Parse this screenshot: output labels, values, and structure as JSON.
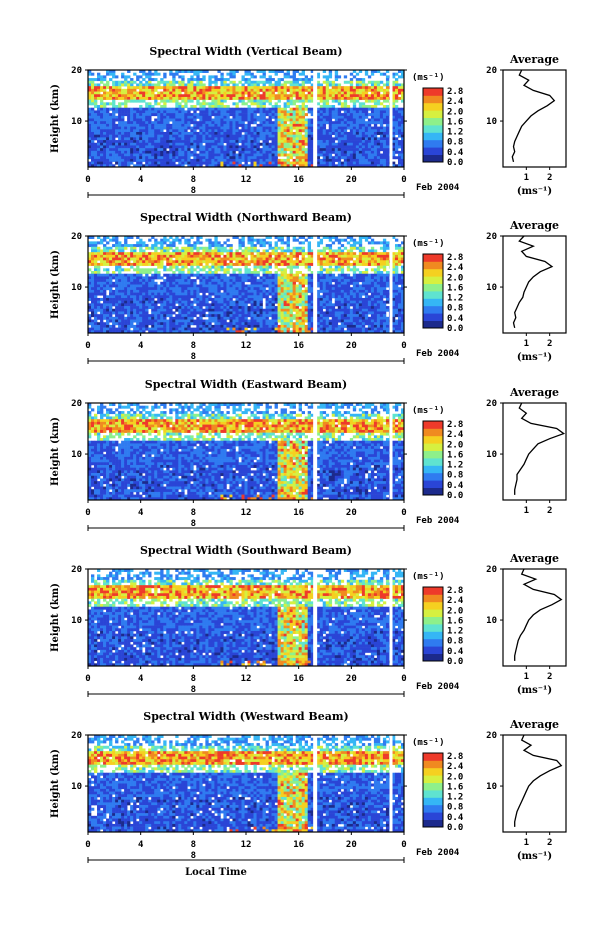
{
  "chart_data": [
    {
      "type": "heatmap",
      "title": "Spectral Width (Vertical Beam)",
      "ylabel": "Height (km)",
      "yticks": [
        "20",
        "10"
      ],
      "xticks": [
        "0",
        "4",
        "8",
        "12",
        "16",
        "20",
        "0"
      ],
      "date_marker": "8",
      "date_label": "Feb 2004",
      "colorbar_unit": "(ms⁻¹)",
      "colorbar_ticks": [
        "2.8",
        "2.4",
        "2.0",
        "1.6",
        "1.2",
        "0.8",
        "0.4",
        "0.0"
      ],
      "profile": {
        "title": "Average",
        "xlabel": "(ms⁻¹)",
        "xticks": [
          "1",
          "2"
        ],
        "yticks": [
          "20",
          "10"
        ],
        "points": [
          [
            0.45,
            2
          ],
          [
            0.4,
            3
          ],
          [
            0.5,
            4
          ],
          [
            0.45,
            5
          ],
          [
            0.5,
            6
          ],
          [
            0.6,
            7
          ],
          [
            0.7,
            8
          ],
          [
            0.8,
            9
          ],
          [
            1.0,
            10
          ],
          [
            1.2,
            11
          ],
          [
            1.5,
            12
          ],
          [
            1.9,
            13
          ],
          [
            2.2,
            14
          ],
          [
            2.0,
            15
          ],
          [
            1.3,
            16
          ],
          [
            0.9,
            17
          ],
          [
            1.1,
            18
          ],
          [
            0.7,
            19
          ],
          [
            0.8,
            20
          ]
        ]
      }
    },
    {
      "type": "heatmap",
      "title": "Spectral Width (Northward Beam)",
      "ylabel": "Height (km)",
      "yticks": [
        "20",
        "10"
      ],
      "xticks": [
        "0",
        "4",
        "8",
        "12",
        "16",
        "20",
        "0"
      ],
      "date_marker": "8",
      "date_label": "Feb 2004",
      "colorbar_unit": "(ms⁻¹)",
      "colorbar_ticks": [
        "2.8",
        "2.4",
        "2.0",
        "1.6",
        "1.2",
        "0.8",
        "0.4",
        "0.0"
      ],
      "profile": {
        "title": "Average",
        "xlabel": "(ms⁻¹)",
        "xticks": [
          "1",
          "2"
        ],
        "yticks": [
          "20",
          "10"
        ],
        "points": [
          [
            0.5,
            2
          ],
          [
            0.45,
            3
          ],
          [
            0.55,
            4
          ],
          [
            0.5,
            5
          ],
          [
            0.6,
            6
          ],
          [
            0.7,
            7
          ],
          [
            0.85,
            8
          ],
          [
            0.9,
            9
          ],
          [
            1.0,
            10
          ],
          [
            1.1,
            11
          ],
          [
            1.3,
            12
          ],
          [
            1.6,
            13
          ],
          [
            2.1,
            14
          ],
          [
            1.8,
            15
          ],
          [
            1.0,
            16
          ],
          [
            0.8,
            17
          ],
          [
            1.3,
            18
          ],
          [
            0.7,
            19
          ],
          [
            0.9,
            20
          ]
        ]
      }
    },
    {
      "type": "heatmap",
      "title": "Spectral Width (Eastward Beam)",
      "ylabel": "Height (km)",
      "yticks": [
        "20",
        "10"
      ],
      "xticks": [
        "0",
        "4",
        "8",
        "12",
        "16",
        "20",
        "0"
      ],
      "date_marker": "8",
      "date_label": "Feb 2004",
      "colorbar_unit": "(ms⁻¹)",
      "colorbar_ticks": [
        "2.8",
        "2.4",
        "2.0",
        "1.6",
        "1.2",
        "0.8",
        "0.4",
        "0.0"
      ],
      "profile": {
        "title": "Average",
        "xlabel": "",
        "xticks": [
          "1",
          "2"
        ],
        "yticks": [
          "20",
          "10"
        ],
        "points": [
          [
            0.5,
            2
          ],
          [
            0.5,
            3
          ],
          [
            0.55,
            4
          ],
          [
            0.6,
            5
          ],
          [
            0.6,
            6
          ],
          [
            0.75,
            7
          ],
          [
            0.9,
            8
          ],
          [
            1.0,
            9
          ],
          [
            1.1,
            10
          ],
          [
            1.3,
            11
          ],
          [
            1.5,
            12
          ],
          [
            2.0,
            13
          ],
          [
            2.6,
            14
          ],
          [
            2.3,
            15
          ],
          [
            1.2,
            16
          ],
          [
            0.8,
            17
          ],
          [
            1.0,
            18
          ],
          [
            0.7,
            19
          ],
          [
            0.8,
            20
          ]
        ]
      }
    },
    {
      "type": "heatmap",
      "title": "Spectral Width (Southward Beam)",
      "ylabel": "Height (km)",
      "yticks": [
        "20",
        "10"
      ],
      "xticks": [
        "0",
        "4",
        "8",
        "12",
        "16",
        "20",
        "0"
      ],
      "date_marker": "8",
      "date_label": "Feb 2004",
      "colorbar_unit": "(ms⁻¹)",
      "colorbar_ticks": [
        "2.8",
        "2.4",
        "2.0",
        "1.6",
        "1.2",
        "0.8",
        "0.4",
        "0.0"
      ],
      "profile": {
        "title": "Average",
        "xlabel": "(ms⁻¹)",
        "xticks": [
          "1",
          "2"
        ],
        "yticks": [
          "20",
          "10"
        ],
        "points": [
          [
            0.5,
            2
          ],
          [
            0.5,
            3
          ],
          [
            0.55,
            4
          ],
          [
            0.6,
            5
          ],
          [
            0.65,
            6
          ],
          [
            0.75,
            7
          ],
          [
            0.9,
            8
          ],
          [
            1.0,
            9
          ],
          [
            1.1,
            10
          ],
          [
            1.3,
            11
          ],
          [
            1.6,
            12
          ],
          [
            2.1,
            13
          ],
          [
            2.5,
            14
          ],
          [
            2.2,
            15
          ],
          [
            1.3,
            16
          ],
          [
            0.9,
            17
          ],
          [
            1.4,
            18
          ],
          [
            0.8,
            19
          ],
          [
            0.9,
            20
          ]
        ]
      }
    },
    {
      "type": "heatmap",
      "title": "Spectral Width (Westward Beam)",
      "ylabel": "Height (km)",
      "yticks": [
        "20",
        "10"
      ],
      "xticks": [
        "0",
        "4",
        "8",
        "12",
        "16",
        "20",
        "0"
      ],
      "date_marker": "8",
      "date_label": "Feb 2004",
      "xlabel": "Local Time",
      "colorbar_unit": "(ms⁻¹)",
      "colorbar_ticks": [
        "2.8",
        "2.4",
        "2.0",
        "1.6",
        "1.2",
        "0.8",
        "0.4",
        "0.0"
      ],
      "profile": {
        "title": "Average",
        "xlabel": "(ms⁻¹)",
        "xticks": [
          "1",
          "2"
        ],
        "yticks": [
          "20",
          "10"
        ],
        "points": [
          [
            0.5,
            2
          ],
          [
            0.5,
            3
          ],
          [
            0.55,
            4
          ],
          [
            0.6,
            5
          ],
          [
            0.7,
            6
          ],
          [
            0.8,
            7
          ],
          [
            0.9,
            8
          ],
          [
            1.0,
            9
          ],
          [
            1.1,
            10
          ],
          [
            1.3,
            11
          ],
          [
            1.6,
            12
          ],
          [
            2.0,
            13
          ],
          [
            2.5,
            14
          ],
          [
            2.3,
            15
          ],
          [
            1.3,
            16
          ],
          [
            0.9,
            17
          ],
          [
            1.2,
            18
          ],
          [
            0.8,
            19
          ],
          [
            0.9,
            20
          ]
        ]
      }
    }
  ],
  "colors": [
    "#1c2a8c",
    "#2a45d6",
    "#2f7bf0",
    "#35b6f5",
    "#5fe3d0",
    "#8ef08a",
    "#d6f040",
    "#f5d020",
    "#f08a20",
    "#ee3a2a"
  ]
}
